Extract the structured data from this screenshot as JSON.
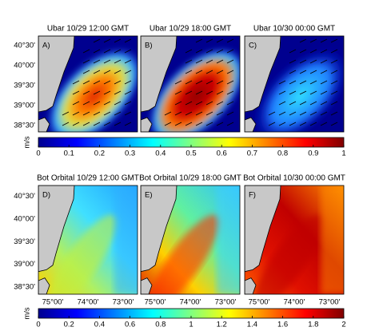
{
  "panels": [
    {
      "title": "Ubar 10/29 12:00 GMT",
      "label": "A)"
    },
    {
      "title": "Ubar 10/29 18:00 GMT",
      "label": "B)"
    },
    {
      "title": "Ubar 10/30 00:00 GMT",
      "label": "C)"
    },
    {
      "title": "Bot Orbital 10/29 12:00 GMT",
      "label": "D)"
    },
    {
      "title": "Bot Orbital 10/29 18:00 GMT",
      "label": "E)"
    },
    {
      "title": "Bot Orbital 10/30 00:00 GMT",
      "label": "F)"
    }
  ],
  "lat_ticks": [
    "40°30'",
    "40°00'",
    "39°30'",
    "39°00'",
    "38°30'"
  ],
  "lon_ticks": [
    "75°00'",
    "74°00'",
    "73°00'"
  ],
  "colorbars": [
    {
      "unit": "m/s",
      "lim": [
        0,
        1
      ],
      "ticks": [
        0,
        0.1,
        0.2,
        0.3,
        0.4,
        0.5,
        0.6,
        0.7,
        0.8,
        0.9,
        1
      ]
    },
    {
      "unit": "m/s",
      "lim": [
        0,
        2
      ],
      "ticks": [
        0,
        0.2,
        0.4,
        0.6,
        0.8,
        1,
        1.2,
        1.4,
        1.6,
        1.8,
        2
      ]
    }
  ]
}
